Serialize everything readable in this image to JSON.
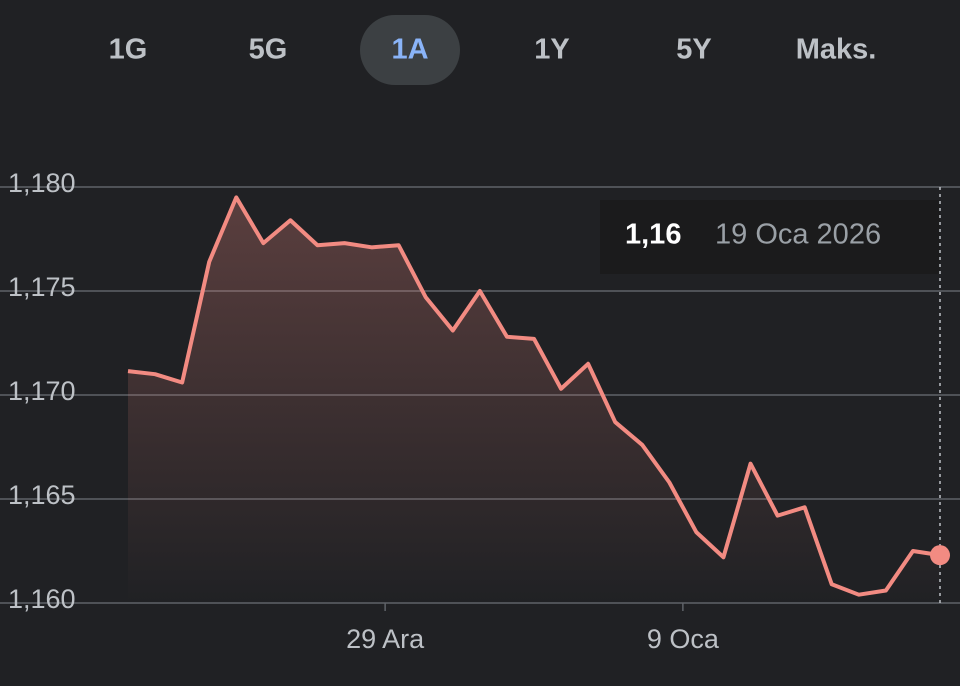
{
  "tabs": [
    "1G",
    "5G",
    "1A",
    "1Y",
    "5Y",
    "Maks."
  ],
  "selected_tab": 2,
  "chart_data": {
    "type": "line",
    "color": "#f28b82",
    "categories": [
      null,
      null,
      null,
      null,
      null,
      null,
      null,
      null,
      null,
      "29 Ara",
      null,
      null,
      null,
      null,
      null,
      null,
      null,
      null,
      null,
      null,
      "9 Oca",
      null,
      null,
      null,
      null,
      null,
      null,
      null,
      null,
      null,
      null
    ],
    "values": [
      1.17115,
      1.171,
      1.1706,
      1.1764,
      1.1795,
      1.1773,
      1.1784,
      1.1772,
      1.1773,
      1.1771,
      1.1772,
      1.1747,
      1.1731,
      1.175,
      1.1728,
      1.1727,
      1.1703,
      1.1715,
      1.1687,
      1.1676,
      1.1658,
      1.1634,
      1.1622,
      1.1667,
      1.1642,
      1.1646,
      1.1609,
      1.1604,
      1.1606,
      1.1625,
      1.1623
    ],
    "ylim": [
      1.16,
      1.18
    ],
    "yticks": [
      {
        "value": 1.16,
        "label": "1,160"
      },
      {
        "value": 1.165,
        "label": "1,165"
      },
      {
        "value": 1.17,
        "label": "1,170"
      },
      {
        "value": 1.175,
        "label": "1,175"
      },
      {
        "value": 1.18,
        "label": "1,180"
      }
    ],
    "grid": true,
    "tooltip": {
      "value": "1,16",
      "date": "19 Oca 2026"
    }
  }
}
